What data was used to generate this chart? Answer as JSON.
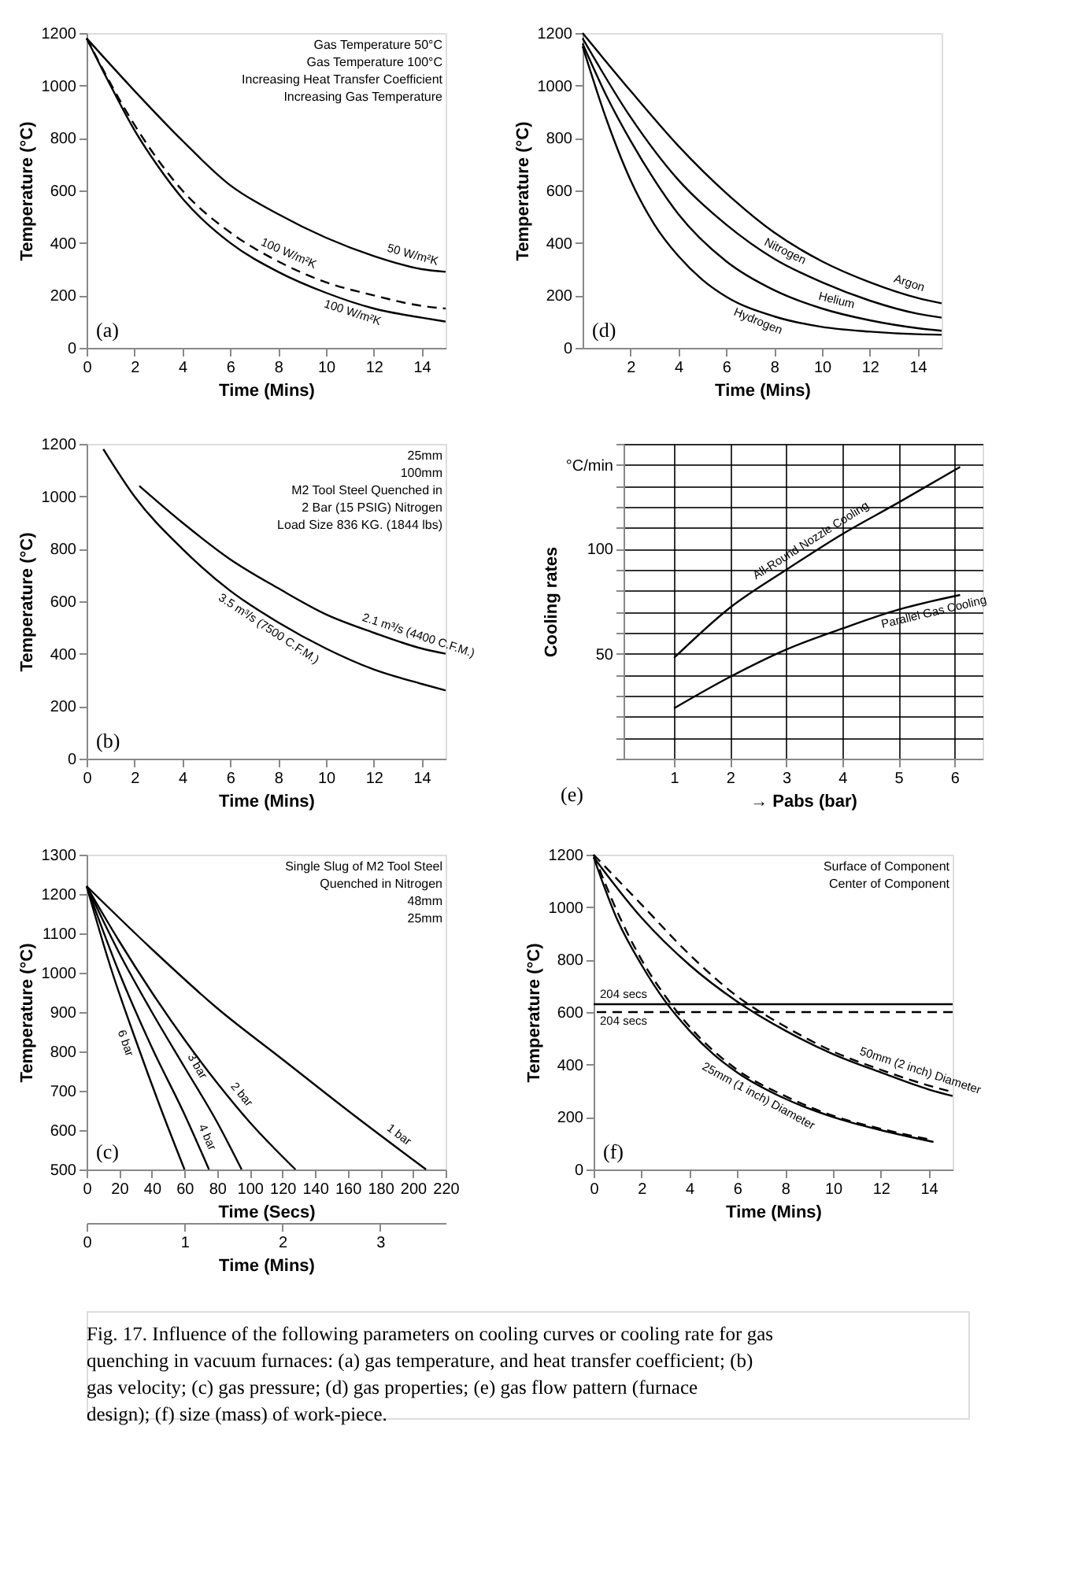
{
  "chart_data": [
    {
      "type": "line",
      "title": "(a)",
      "xlabel": "Time (Mins)",
      "ylabel": "Temperature (°C)",
      "xlim": [
        0,
        15
      ],
      "ylim": [
        0,
        1200
      ],
      "xticks": [
        0,
        2,
        4,
        6,
        8,
        10,
        12,
        14
      ],
      "yticks": [
        0,
        200,
        400,
        600,
        800,
        1000,
        1200
      ],
      "series": [
        {
          "name": "50 W/m²K",
          "color": "#000000",
          "line_style": "solid",
          "x": [
            0,
            2,
            4,
            6,
            8,
            10,
            12,
            14,
            15
          ],
          "values": [
            1180,
            980,
            790,
            620,
            510,
            420,
            350,
            300,
            290
          ]
        },
        {
          "name": "100 W/m²K",
          "color": "#000000",
          "line_style": "dashed",
          "x": [
            0,
            2,
            4,
            6,
            8,
            10,
            12,
            14,
            15
          ],
          "values": [
            1180,
            850,
            600,
            440,
            330,
            250,
            200,
            160,
            150
          ]
        },
        {
          "name": "100 W/m²K",
          "color": "#000000",
          "line_style": "solid",
          "x": [
            0,
            1,
            2,
            3,
            4,
            6,
            8,
            10,
            12,
            14,
            15
          ],
          "values": [
            1180,
            1000,
            830,
            690,
            570,
            400,
            290,
            210,
            150,
            115,
            100
          ]
        }
      ],
      "annotations": [
        "Gas Temperature 50°C",
        "Gas Temperature 100°C",
        "Increasing Heat Transfer Coefficient",
        "Increasing Gas Temperature"
      ]
    },
    {
      "type": "line",
      "title": "(d)",
      "xlabel": "Time (Mins)",
      "ylabel": "Temperature (°C)",
      "xlim": [
        0,
        15
      ],
      "ylim": [
        0,
        1200
      ],
      "xticks": [
        2,
        4,
        6,
        8,
        10,
        12,
        14
      ],
      "yticks": [
        0,
        200,
        400,
        600,
        800,
        1000,
        1200
      ],
      "series": [
        {
          "name": "Argon",
          "color": "#000000",
          "x": [
            0,
            2,
            4,
            6,
            8,
            10,
            12,
            14,
            15
          ],
          "values": [
            1200,
            980,
            770,
            590,
            440,
            330,
            250,
            190,
            170
          ]
        },
        {
          "name": "Nitrogen",
          "color": "#000000",
          "x": [
            0,
            2,
            4,
            6,
            8,
            10,
            12,
            14,
            15
          ],
          "values": [
            1180,
            880,
            640,
            470,
            340,
            250,
            180,
            130,
            115
          ]
        },
        {
          "name": "Helium",
          "color": "#000000",
          "x": [
            0,
            1,
            2,
            3,
            4,
            6,
            8,
            10,
            12,
            14,
            15
          ],
          "values": [
            1160,
            960,
            790,
            640,
            510,
            330,
            220,
            150,
            105,
            75,
            65
          ]
        },
        {
          "name": "Hydrogen",
          "color": "#000000",
          "x": [
            0,
            1,
            2,
            3,
            4,
            5,
            6,
            8,
            10,
            12,
            14,
            15
          ],
          "values": [
            1150,
            870,
            640,
            470,
            350,
            260,
            195,
            120,
            80,
            62,
            52,
            50
          ]
        }
      ]
    },
    {
      "type": "line",
      "title": "(b)",
      "xlabel": "Time (Mins)",
      "ylabel": "Temperature (°C)",
      "xlim": [
        0,
        15
      ],
      "ylim": [
        0,
        1200
      ],
      "xticks": [
        0,
        2,
        4,
        6,
        8,
        10,
        12,
        14
      ],
      "yticks": [
        0,
        200,
        400,
        600,
        800,
        1000,
        1200
      ],
      "series": [
        {
          "name": "2.1 m³/s (4400 C.F.M.)",
          "color": "#000000",
          "x": [
            2.2,
            4,
            6,
            8,
            10,
            12,
            14,
            15
          ],
          "values": [
            1040,
            900,
            760,
            650,
            550,
            480,
            420,
            400
          ]
        },
        {
          "name": "3.5 m³/s (7500 C.F.M.)",
          "color": "#000000",
          "x": [
            0.7,
            2,
            4,
            6,
            8,
            10,
            12,
            14,
            15
          ],
          "values": [
            1180,
            1000,
            800,
            640,
            520,
            420,
            340,
            285,
            260
          ]
        }
      ],
      "annotations": [
        "25mm",
        "100mm",
        "M2 Tool Steel Quenched in",
        "2 Bar (15 PSIG) Nitrogen",
        "Load Size 836 KG. (1844 lbs)"
      ]
    },
    {
      "type": "line",
      "title": "(e)",
      "xlabel": "→ Pabs (bar)",
      "ylabel": "Cooling rates",
      "xlim": [
        0.1,
        6.5
      ],
      "ylim": [
        0,
        150
      ],
      "xticks": [
        1,
        2,
        3,
        4,
        5,
        6
      ],
      "yticks": [
        {
          "value": 0,
          "label": null
        },
        {
          "value": 10,
          "label": null
        },
        {
          "value": 20,
          "label": null
        },
        {
          "value": 30,
          "label": null
        },
        {
          "value": 40,
          "label": null
        },
        50,
        {
          "value": 60,
          "label": null
        },
        {
          "value": 70,
          "label": null
        },
        {
          "value": 80,
          "label": null
        },
        {
          "value": 90,
          "label": null
        },
        100,
        {
          "value": 110,
          "label": null
        },
        {
          "value": 120,
          "label": null
        },
        {
          "value": 130,
          "label": null
        },
        {
          "value": 140,
          "label": "°C/min"
        },
        {
          "value": 150,
          "label": null
        }
      ],
      "grid": true,
      "series": [
        {
          "name": "All-Round Nozzle Cooling",
          "color": "#000000",
          "x": [
            1,
            2,
            3,
            4,
            5,
            6.1
          ],
          "values": [
            48,
            72,
            90,
            107,
            122,
            139
          ]
        },
        {
          "name": "Parallel Gas Cooling",
          "color": "#000000",
          "x": [
            1,
            2,
            3,
            4,
            5,
            6.1
          ],
          "values": [
            24,
            39,
            52,
            62,
            71,
            78
          ]
        }
      ]
    },
    {
      "type": "line",
      "title": "(c)",
      "xlabel": "Time (Secs)",
      "ylabel": "Temperature (°C)",
      "x2label": "Time (Mins)",
      "xlim": [
        0,
        220
      ],
      "ylim": [
        500,
        1300
      ],
      "xticks": [
        0,
        20,
        40,
        60,
        80,
        100,
        120,
        140,
        160,
        180,
        200,
        220
      ],
      "yticks": [
        500,
        600,
        700,
        800,
        900,
        1000,
        1100,
        1200,
        1300
      ],
      "x2lim": [
        0,
        3.67
      ],
      "x2ticks": [
        0,
        1,
        2,
        3
      ],
      "series": [
        {
          "name": "1 bar",
          "color": "#000000",
          "x": [
            0,
            40,
            80,
            120,
            160,
            208
          ],
          "values": [
            1220,
            1060,
            910,
            780,
            650,
            500
          ]
        },
        {
          "name": "2 bar",
          "color": "#000000",
          "x": [
            0,
            20,
            40,
            60,
            80,
            100,
            128
          ],
          "values": [
            1220,
            1080,
            950,
            830,
            720,
            620,
            500
          ]
        },
        {
          "name": "3 bar",
          "color": "#000000",
          "x": [
            0,
            20,
            40,
            60,
            80,
            95
          ],
          "values": [
            1220,
            1050,
            900,
            760,
            620,
            500
          ]
        },
        {
          "name": "4 bar",
          "color": "#000000",
          "x": [
            0,
            20,
            40,
            60,
            75
          ],
          "values": [
            1220,
            1000,
            810,
            640,
            500
          ]
        },
        {
          "name": "6 bar",
          "color": "#000000",
          "x": [
            0,
            15,
            30,
            45,
            60
          ],
          "values": [
            1220,
            1010,
            830,
            660,
            500
          ]
        }
      ],
      "annotations": [
        "Single Slug of M2 Tool Steel",
        "Quenched in Nitrogen",
        "48mm",
        "25mm"
      ]
    },
    {
      "type": "line",
      "title": "(f)",
      "xlabel": "Time (Mins)",
      "ylabel": "Temperature (°C)",
      "xlim": [
        0,
        15
      ],
      "ylim": [
        0,
        1200
      ],
      "xticks": [
        0,
        2,
        4,
        6,
        8,
        10,
        12,
        14
      ],
      "yticks": [
        0,
        200,
        400,
        600,
        800,
        1000,
        1200
      ],
      "series": [
        {
          "color": "#000000",
          "line_style": "solid",
          "x": [
            0,
            2,
            4,
            6,
            8,
            10,
            12,
            14,
            15
          ],
          "values": [
            1190,
            960,
            780,
            640,
            530,
            440,
            370,
            305,
            280
          ]
        },
        {
          "name": "50mm (2 inch) Diameter",
          "color": "#000000",
          "line_style": "dashed",
          "x": [
            0,
            2,
            4,
            6,
            8,
            10,
            12,
            14,
            15
          ],
          "values": [
            1200,
            1010,
            820,
            660,
            545,
            450,
            380,
            320,
            295
          ]
        },
        {
          "name": "25mm (1 inch) Diameter",
          "color": "#000000",
          "line_style": "solid",
          "x": [
            0,
            1,
            2,
            3,
            4,
            5,
            6,
            8,
            10,
            12,
            14.2
          ],
          "values": [
            1190,
            950,
            780,
            640,
            530,
            440,
            370,
            270,
            200,
            150,
            105
          ]
        },
        {
          "color": "#000000",
          "line_style": "dashed",
          "x": [
            0,
            1,
            2,
            3,
            4,
            6,
            8,
            10,
            12,
            14
          ],
          "values": [
            1200,
            980,
            800,
            660,
            545,
            380,
            280,
            205,
            155,
            115
          ]
        }
      ],
      "ref_lines": [
        {
          "axis": "y",
          "value": 630,
          "label": "204 secs",
          "line_style": "solid"
        },
        {
          "axis": "y",
          "value": 600,
          "label": "204 secs",
          "line_style": "dashed"
        }
      ],
      "annotations": [
        "Surface of Component",
        "Center of Component"
      ]
    },
    {
      "type": "other",
      "title": "Fig. 17. Influence of the following parameters on cooling curves or cooling rate for gas quenching in vacuum furnaces: (a) gas temperature, and heat transfer coefficient; (b) gas velocity; (c) gas pressure; (d) gas properties; (e) gas flow pattern (furnace design); (f) size (mass) of work-piece."
    }
  ]
}
